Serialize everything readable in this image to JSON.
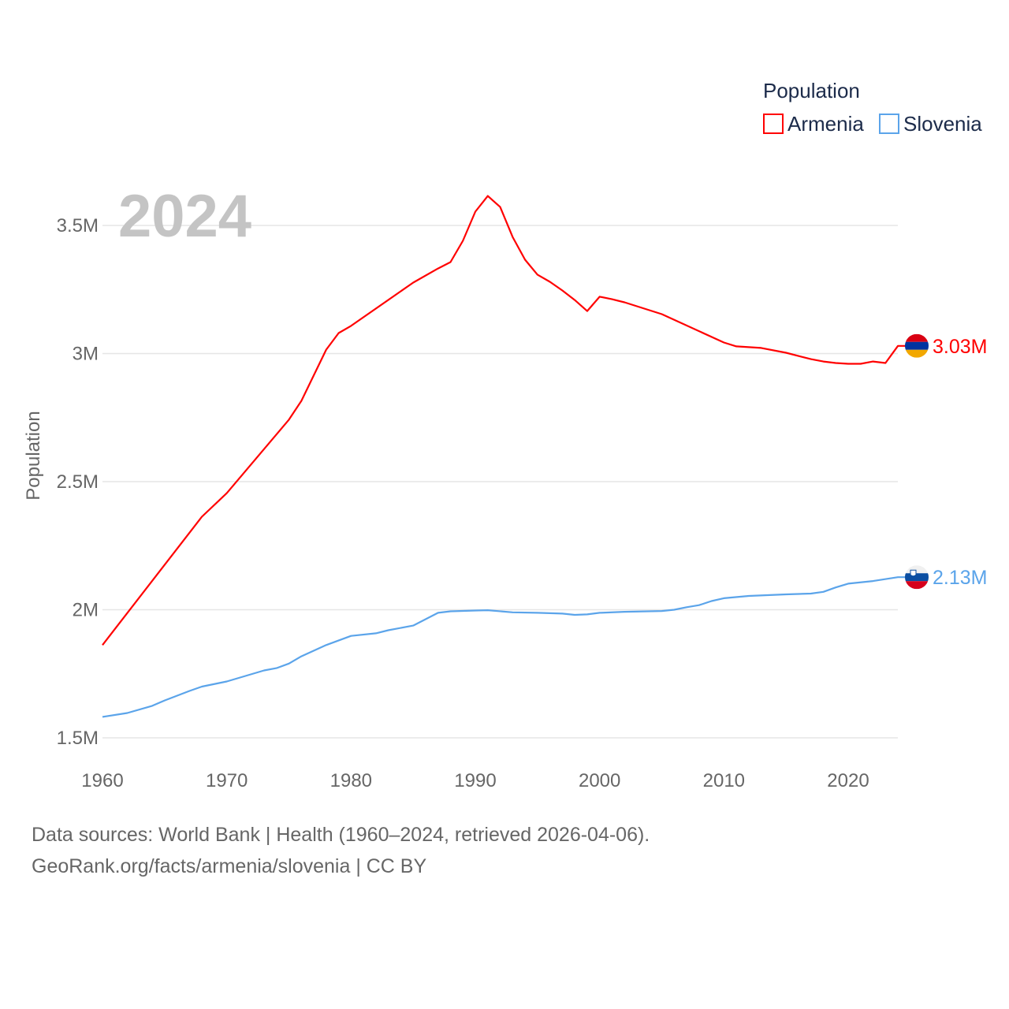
{
  "chart_data": {
    "type": "line",
    "title": "",
    "big_year_label": "2024",
    "xlabel": "",
    "ylabel": "Population",
    "xlim": [
      1960,
      2024
    ],
    "ylim": [
      1.5,
      3.75
    ],
    "y_unit": "millions",
    "grid": true,
    "x_ticks": [
      "1960",
      "1970",
      "1980",
      "1990",
      "2000",
      "2010",
      "2020"
    ],
    "x_tick_values": [
      1960,
      1970,
      1980,
      1990,
      2000,
      2010,
      2020
    ],
    "y_ticks": [
      "1.5M",
      "2M",
      "2.5M",
      "3M",
      "3.5M"
    ],
    "y_tick_values": [
      1.5,
      2,
      2.5,
      3,
      3.5
    ],
    "legend": {
      "title": "Population",
      "placement": "top-right"
    },
    "series": [
      {
        "name": "Armenia",
        "color": "#ff0000",
        "end_label": "3.03M",
        "flag": "armenia-flag",
        "x": [
          1960,
          1968,
          1970,
          1975,
          1976,
          1978,
          1979,
          1980,
          1985,
          1987,
          1988,
          1989,
          1990,
          1991,
          1992,
          1993,
          1994,
          1995,
          1996,
          1997,
          1998,
          1999,
          2000,
          2001,
          2002,
          2005,
          2010,
          2011,
          2013,
          2015,
          2017,
          2018,
          2019,
          2020,
          2021,
          2022,
          2023,
          2024
        ],
        "values": [
          1.862,
          2.363,
          2.455,
          2.742,
          2.815,
          3.015,
          3.08,
          3.108,
          3.277,
          3.332,
          3.357,
          3.44,
          3.554,
          3.615,
          3.572,
          3.455,
          3.366,
          3.308,
          3.28,
          3.246,
          3.209,
          3.166,
          3.222,
          3.212,
          3.2,
          3.154,
          3.043,
          3.028,
          3.022,
          3.003,
          2.978,
          2.969,
          2.963,
          2.96,
          2.96,
          2.969,
          2.963,
          3.03
        ]
      },
      {
        "name": "Slovenia",
        "color": "#5ba4ea",
        "end_label": "2.13M",
        "flag": "slovenia-flag",
        "x": [
          1960,
          1962,
          1964,
          1965,
          1967,
          1968,
          1970,
          1973,
          1974,
          1975,
          1976,
          1978,
          1980,
          1982,
          1983,
          1985,
          1987,
          1988,
          1990,
          1991,
          1993,
          1995,
          1997,
          1998,
          1999,
          2000,
          2002,
          2005,
          2006,
          2007,
          2008,
          2009,
          2010,
          2012,
          2015,
          2017,
          2018,
          2019,
          2020,
          2022,
          2024
        ],
        "values": [
          1.582,
          1.597,
          1.625,
          1.646,
          1.683,
          1.7,
          1.72,
          1.763,
          1.772,
          1.79,
          1.818,
          1.862,
          1.898,
          1.908,
          1.92,
          1.938,
          1.988,
          1.994,
          1.997,
          1.998,
          1.99,
          1.988,
          1.985,
          1.98,
          1.982,
          1.988,
          1.992,
          1.995,
          2.0,
          2.01,
          2.018,
          2.034,
          2.045,
          2.054,
          2.06,
          2.063,
          2.07,
          2.087,
          2.102,
          2.112,
          2.127
        ]
      }
    ]
  },
  "footer": {
    "sources": "Data sources: World Bank | Health (1960–2024, retrieved 2026-04-06).",
    "credit": "GeoRank.org/facts/armenia/slovenia | CC BY"
  }
}
